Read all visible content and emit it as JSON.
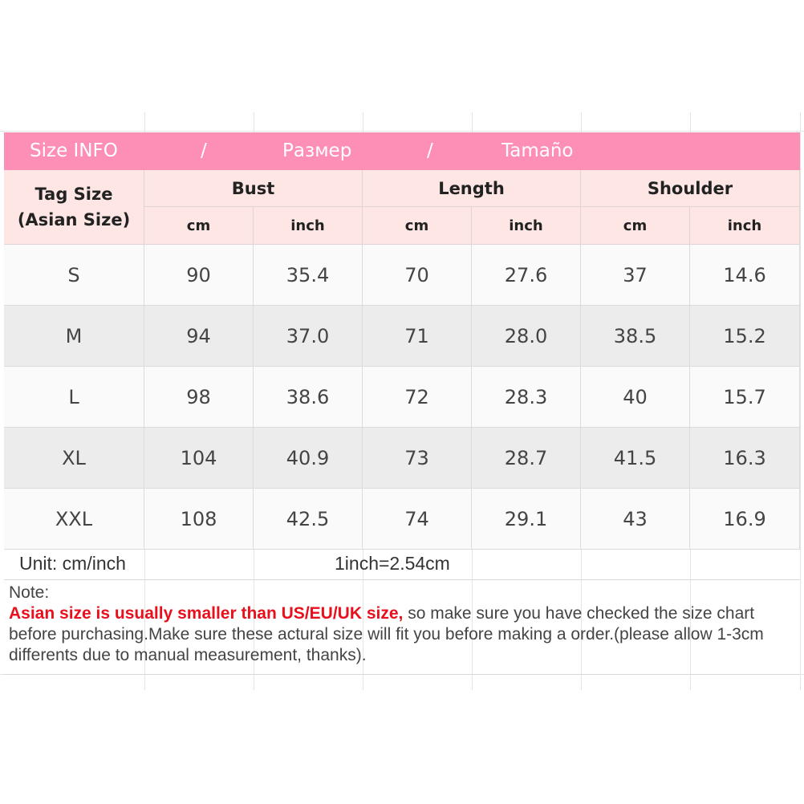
{
  "title": {
    "parts": [
      "Size INFO",
      "/",
      "Размер",
      "/",
      "Tamaño"
    ]
  },
  "colors": {
    "title_bg": "#fd8eb6",
    "header_bg": "#fde6e4",
    "row_light": "#fafafa",
    "row_dark": "#ececec",
    "warning": "#e8101c"
  },
  "header": {
    "tag_size": [
      "Tag Size",
      "(Asian Size)"
    ],
    "groups": [
      "Bust",
      "Length",
      "Shoulder"
    ],
    "units": [
      "cm",
      "inch",
      "cm",
      "inch",
      "cm",
      "inch"
    ]
  },
  "rows": [
    [
      "S",
      "90",
      "35.4",
      "70",
      "27.6",
      "37",
      "14.6"
    ],
    [
      "M",
      "94",
      "37.0",
      "71",
      "28.0",
      "38.5",
      "15.2"
    ],
    [
      "L",
      "98",
      "38.6",
      "72",
      "28.3",
      "40",
      "15.7"
    ],
    [
      "XL",
      "104",
      "40.9",
      "73",
      "28.7",
      "41.5",
      "16.3"
    ],
    [
      "XXL",
      "108",
      "42.5",
      "74",
      "29.1",
      "43",
      "16.9"
    ]
  ],
  "unit": {
    "label": "Unit: cm/inch",
    "conversion": "1inch=2.54cm"
  },
  "note": {
    "label": "Note:",
    "warning": "Asian size is usually smaller than US/EU/UK size,",
    "text": " so make sure you have checked the size chart before purchasing.Make sure these actural size will fit you before making a order.(please allow 1-3cm differents due to manual measurement, thanks)."
  }
}
